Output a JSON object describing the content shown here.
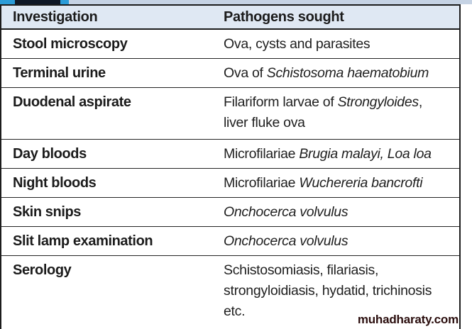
{
  "colors": {
    "accent_blue": "#2b9cd8",
    "strip_navy": "#101826",
    "strip_light": "#c6d3e4",
    "header_bg": "#dfe8f3",
    "border": "#1c1c1c",
    "watermark": "#2a0d0d"
  },
  "table": {
    "columns": [
      "Investigation",
      "Pathogens sought"
    ],
    "rows": [
      {
        "investigation": "Stool microscopy",
        "pathogens": [
          {
            "t": "Ova, cysts and parasites"
          }
        ]
      },
      {
        "investigation": "Terminal urine",
        "pathogens": [
          {
            "t": "Ova of "
          },
          {
            "t": "Schistosoma haematobium",
            "i": true
          }
        ]
      },
      {
        "investigation": "Duodenal aspirate",
        "size": "tall",
        "pathogens": [
          {
            "t": "Filariform larvae of "
          },
          {
            "t": "Strongyloides",
            "i": true
          },
          {
            "t": ","
          },
          {
            "br": true
          },
          {
            "t": "liver fluke ova"
          }
        ]
      },
      {
        "investigation": "Day bloods",
        "pathogens": [
          {
            "t": "Microfilariae "
          },
          {
            "t": "Brugia malayi, Loa loa",
            "i": true
          }
        ]
      },
      {
        "investigation": "Night bloods",
        "pathogens": [
          {
            "t": "Microfilariae "
          },
          {
            "t": "Wuchereria bancrofti",
            "i": true
          }
        ]
      },
      {
        "investigation": "Skin snips",
        "pathogens": [
          {
            "t": "Onchocerca volvulus",
            "i": true
          }
        ]
      },
      {
        "investigation": "Slit lamp examination",
        "pathogens": [
          {
            "t": "Onchocerca volvulus",
            "i": true
          }
        ]
      },
      {
        "investigation": "Serology",
        "size": "xtall",
        "pathogens": [
          {
            "t": "Schistosomiasis, filariasis,"
          },
          {
            "br": true
          },
          {
            "t": "strongyloidiasis, hydatid, trichinosis"
          },
          {
            "br": true
          },
          {
            "t": "etc."
          }
        ]
      }
    ]
  },
  "watermark": "muhadharaty.com"
}
